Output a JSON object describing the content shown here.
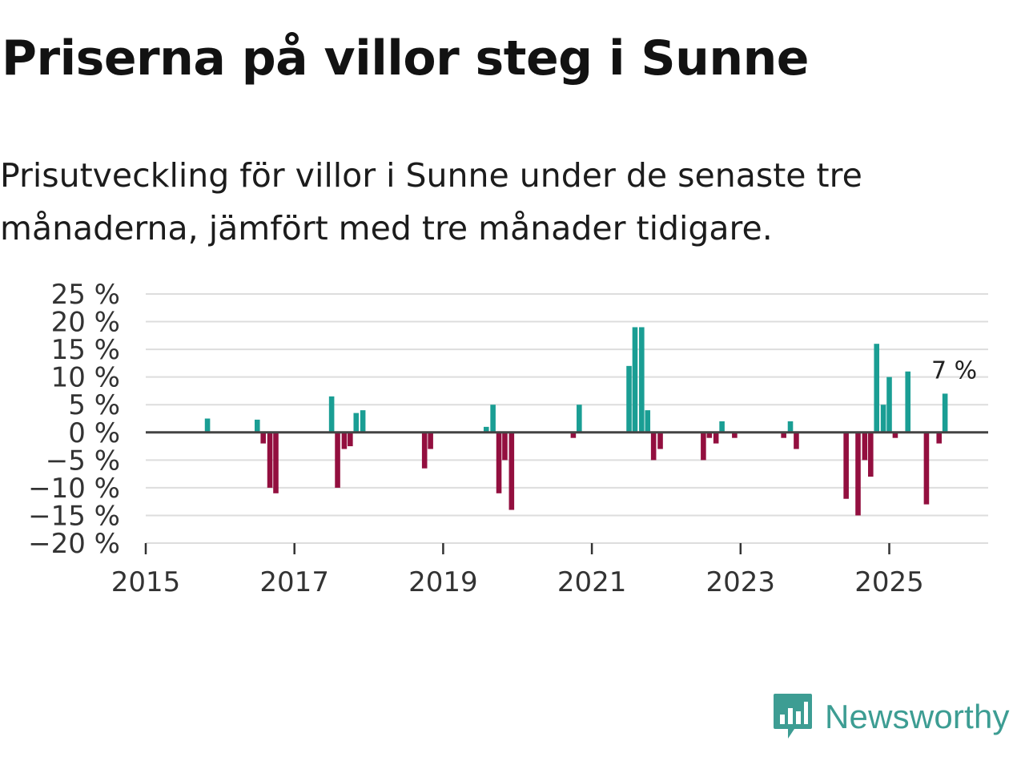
{
  "title": "Priserna på villor steg i Sunne",
  "subtitle": "Prisutveckling för villor i Sunne under de senaste tre månaderna, jämfört med tre månader tidigare.",
  "brand": {
    "name": "Newsworthy",
    "logo": "newsworthy-logo-icon"
  },
  "colors": {
    "positive": "#1a9e94",
    "negative": "#930f3f",
    "grid": "#dddddd",
    "zero": "#444444",
    "brand": "#3d9d93"
  },
  "chart_data": {
    "type": "bar",
    "title": "",
    "xlabel": "",
    "ylabel": "",
    "ylim": [
      -20,
      25
    ],
    "xlim": [
      2015.0,
      2026.33
    ],
    "yticks": [
      25,
      20,
      15,
      10,
      5,
      0,
      -5,
      -10,
      -15,
      -20
    ],
    "ytick_labels": [
      "25 %",
      "20 %",
      "15 %",
      "10 %",
      "5 %",
      "0 %",
      "−5 %",
      "−10 %",
      "−15 %",
      "−20 %"
    ],
    "xticks": [
      2015,
      2017,
      2019,
      2021,
      2023,
      2025
    ],
    "xtick_labels": [
      "2015",
      "2017",
      "2019",
      "2021",
      "2023",
      "2025"
    ],
    "annotation": {
      "text": "7 %",
      "x": 2025.83,
      "y": 7
    },
    "points": [
      {
        "x": 2015.83,
        "y": 2.5
      },
      {
        "x": 2016.5,
        "y": 2.3
      },
      {
        "x": 2016.58,
        "y": -2
      },
      {
        "x": 2016.67,
        "y": -10
      },
      {
        "x": 2016.75,
        "y": -11
      },
      {
        "x": 2017.5,
        "y": 6.5
      },
      {
        "x": 2017.58,
        "y": -10
      },
      {
        "x": 2017.67,
        "y": -3
      },
      {
        "x": 2017.75,
        "y": -2.5
      },
      {
        "x": 2017.83,
        "y": 3.5
      },
      {
        "x": 2017.92,
        "y": 4
      },
      {
        "x": 2018.75,
        "y": -6.5
      },
      {
        "x": 2018.83,
        "y": -3
      },
      {
        "x": 2019.58,
        "y": 1
      },
      {
        "x": 2019.67,
        "y": 5
      },
      {
        "x": 2019.75,
        "y": -11
      },
      {
        "x": 2019.83,
        "y": -5
      },
      {
        "x": 2019.92,
        "y": -14
      },
      {
        "x": 2020.75,
        "y": -1
      },
      {
        "x": 2020.83,
        "y": 5
      },
      {
        "x": 2021.5,
        "y": 12
      },
      {
        "x": 2021.58,
        "y": 19
      },
      {
        "x": 2021.67,
        "y": 19
      },
      {
        "x": 2021.75,
        "y": 4
      },
      {
        "x": 2021.83,
        "y": -5
      },
      {
        "x": 2021.92,
        "y": -3
      },
      {
        "x": 2022.5,
        "y": -5
      },
      {
        "x": 2022.58,
        "y": -1
      },
      {
        "x": 2022.67,
        "y": -2
      },
      {
        "x": 2022.75,
        "y": 2
      },
      {
        "x": 2022.92,
        "y": -1
      },
      {
        "x": 2023.58,
        "y": -1
      },
      {
        "x": 2023.67,
        "y": 2
      },
      {
        "x": 2023.75,
        "y": -3
      },
      {
        "x": 2024.42,
        "y": -12
      },
      {
        "x": 2024.58,
        "y": -15
      },
      {
        "x": 2024.67,
        "y": -5
      },
      {
        "x": 2024.75,
        "y": -8
      },
      {
        "x": 2024.83,
        "y": 16
      },
      {
        "x": 2024.92,
        "y": 5
      },
      {
        "x": 2025.0,
        "y": 10
      },
      {
        "x": 2025.08,
        "y": -1
      },
      {
        "x": 2025.25,
        "y": 11
      },
      {
        "x": 2025.5,
        "y": -13
      },
      {
        "x": 2025.67,
        "y": -2
      },
      {
        "x": 2025.75,
        "y": 7
      }
    ]
  }
}
